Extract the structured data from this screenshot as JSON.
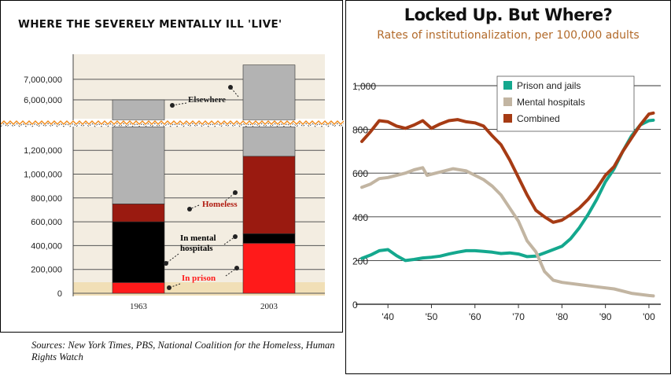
{
  "chart_data": [
    {
      "type": "bar",
      "title": "WHERE THE SEVERELY MENTALLY ILL 'LIVE'",
      "categories": [
        "1963",
        "2003"
      ],
      "yticks": [
        "7,000,000",
        "6,000,000",
        "1,200,000",
        "1,000,000",
        "800,000",
        "600,000",
        "400,000",
        "200,000",
        "0"
      ],
      "axis_break": "between 1,200,000 and 6,000,000",
      "series": [
        {
          "name": "In prison",
          "values": [
            90000,
            420000
          ],
          "color": "#ff1a1a"
        },
        {
          "name": "In mental hospitals",
          "values": [
            510000,
            80000
          ],
          "color": "#000000"
        },
        {
          "name": "Homeless",
          "values": [
            150000,
            650000
          ],
          "color": "#9a1a10"
        },
        {
          "name": "Elsewhere",
          "values": [
            6000000,
            7700000
          ],
          "color": "#b3b3b3",
          "note": "top of bar on broken upper scale"
        }
      ],
      "annotations": [
        "Elsewhere",
        "Homeless",
        "In mental hospitals",
        "In prison"
      ],
      "sources": "Sources: New York Times, PBS, National Coalition for the Homeless, Human Rights Watch"
    },
    {
      "type": "line",
      "title": "Locked Up. But Where?",
      "subtitle": "Rates of institutionalization, per 100,000 adults",
      "xticks": [
        "'40",
        "'50",
        "'60",
        "'70",
        "'80",
        "'90",
        "'00"
      ],
      "yticks": [
        "0",
        "200",
        "400",
        "600",
        "800",
        "1,000"
      ],
      "ylim": [
        0,
        1000
      ],
      "xlim": [
        1934,
        2002
      ],
      "grid": true,
      "legend": "top-center",
      "series": [
        {
          "name": "Prison and jails",
          "color": "#14a88e",
          "x": [
            1934,
            1936,
            1938,
            1940,
            1942,
            1944,
            1946,
            1948,
            1950,
            1952,
            1954,
            1956,
            1958,
            1960,
            1962,
            1964,
            1966,
            1968,
            1970,
            1972,
            1974,
            1976,
            1978,
            1980,
            1982,
            1984,
            1986,
            1988,
            1990,
            1992,
            1994,
            1996,
            1998,
            2000,
            2001
          ],
          "y": [
            210,
            225,
            245,
            250,
            222,
            200,
            205,
            212,
            215,
            220,
            230,
            238,
            245,
            245,
            242,
            238,
            232,
            235,
            230,
            218,
            220,
            235,
            250,
            265,
            300,
            350,
            410,
            480,
            560,
            620,
            700,
            770,
            820,
            840,
            842
          ]
        },
        {
          "name": "Mental hospitals",
          "color": "#c2b5a2",
          "x": [
            1934,
            1936,
            1938,
            1940,
            1942,
            1944,
            1946,
            1948,
            1949,
            1952,
            1955,
            1958,
            1960,
            1962,
            1964,
            1966,
            1968,
            1970,
            1972,
            1974,
            1976,
            1978,
            1980,
            1984,
            1988,
            1992,
            1996,
            2000,
            2001
          ],
          "y": [
            535,
            550,
            575,
            580,
            590,
            600,
            615,
            625,
            590,
            605,
            620,
            610,
            590,
            570,
            540,
            500,
            440,
            380,
            290,
            240,
            150,
            110,
            100,
            90,
            80,
            70,
            50,
            40,
            38
          ]
        },
        {
          "name": "Combined",
          "color": "#a63b14",
          "x": [
            1934,
            1936,
            1938,
            1940,
            1942,
            1944,
            1946,
            1948,
            1950,
            1952,
            1954,
            1956,
            1958,
            1960,
            1962,
            1964,
            1966,
            1968,
            1970,
            1972,
            1974,
            1976,
            1978,
            1980,
            1982,
            1984,
            1986,
            1988,
            1990,
            1992,
            1994,
            1996,
            1998,
            2000,
            2001
          ],
          "y": [
            745,
            790,
            840,
            835,
            815,
            805,
            820,
            840,
            805,
            825,
            840,
            845,
            835,
            830,
            815,
            770,
            730,
            660,
            580,
            500,
            430,
            400,
            375,
            385,
            410,
            440,
            480,
            530,
            590,
            630,
            700,
            760,
            820,
            870,
            875
          ]
        }
      ]
    }
  ]
}
